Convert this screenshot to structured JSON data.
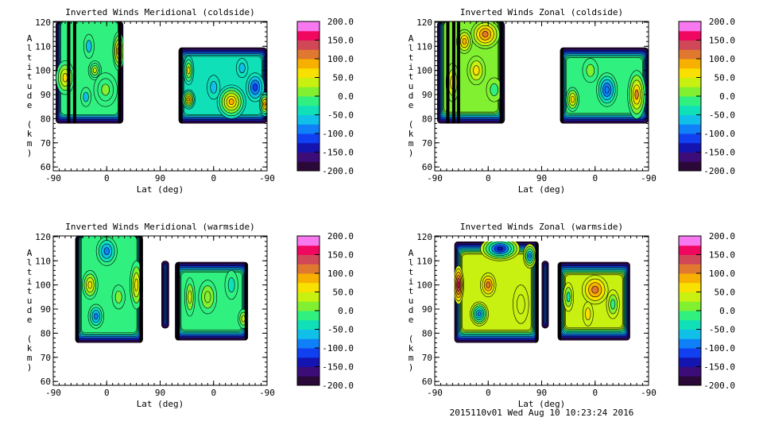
{
  "footer": "2015110v01 Wed Aug 10 10:23:24 2016",
  "chart_data": {
    "type": "contour",
    "shared": {
      "xlabel": "Lat (deg)",
      "ylabel": "Altitude (km)",
      "xticks": [
        0,
        90,
        180,
        270,
        360
      ],
      "xtick_labels": [
        "-90",
        "0",
        "90",
        "0",
        "-90"
      ],
      "xlim": [
        0,
        360
      ],
      "yticks": [
        60,
        70,
        80,
        90,
        100,
        110,
        120
      ],
      "ylim": [
        58.4,
        120.3
      ],
      "colorbar_ticks": [
        -200,
        -150,
        -100,
        -50,
        0,
        50,
        100,
        150,
        200
      ],
      "colorbar_labels": [
        "-200.0",
        "-150.0",
        "-100.0",
        "-50.0",
        "0.0",
        "50.0",
        "100.0",
        "150.0",
        "200.0"
      ],
      "levels_step": 25,
      "level_colors": [
        "#2a0838",
        "#3c0c78",
        "#1414b0",
        "#1040f0",
        "#1080f8",
        "#10c0e8",
        "#10e0b8",
        "#30f080",
        "#80f030",
        "#c8f010",
        "#f8e000",
        "#f8b000",
        "#e07830",
        "#d04858",
        "#f00860",
        "#f878f0"
      ]
    },
    "panels": [
      {
        "title": "Inverted Winds Meridional (coldside)",
        "regions": [
          {
            "u": [
              4,
              118
            ],
            "alt": [
              78,
              120.3
            ],
            "base": -25,
            "features": [
              [
                20,
                97,
                60,
                14,
                7
              ],
              [
                70,
                100,
                40,
                10,
                4
              ],
              [
                60,
                110,
                -60,
                8,
                5
              ],
              [
                55,
                89,
                -60,
                8,
                4
              ],
              [
                88,
                92,
                20,
                18,
                7
              ],
              [
                110,
                108,
                80,
                9,
                8
              ]
            ],
            "stripes": [
              26,
              36,
              112
            ]
          },
          {
            "u": [
              211,
              360
            ],
            "alt": [
              78,
              109.5
            ],
            "base": -30,
            "features": [
              [
                228,
                100,
                50,
                8,
                6
              ],
              [
                228,
                88,
                90,
                10,
                4
              ],
              [
                300,
                87,
                90,
                22,
                7
              ],
              [
                340,
                93,
                -110,
                14,
                6
              ],
              [
                318,
                101,
                -60,
                9,
                4
              ],
              [
                356,
                86,
                80,
                8,
                5
              ],
              [
                270,
                93,
                -60,
                10,
                5
              ]
            ],
            "stripes": [
              215
            ]
          }
        ]
      },
      {
        "title": "Inverted Winds Zonal (coldside)",
        "regions": [
          {
            "u": [
              4,
              118
            ],
            "alt": [
              78,
              120.3
            ],
            "base": 20,
            "features": [
              [
                30,
                95,
                60,
                10,
                8
              ],
              [
                70,
                100,
                60,
                14,
                6
              ],
              [
                85,
                115,
                110,
                22,
                6
              ],
              [
                100,
                92,
                -10,
                12,
                5
              ],
              [
                50,
                112,
                90,
                12,
                5
              ]
            ],
            "stripes": [
              22,
              32,
              40,
              112
            ]
          },
          {
            "u": [
              211,
              360
            ],
            "alt": [
              78,
              109.5
            ],
            "base": -10,
            "features": [
              [
                290,
                92,
                -100,
                16,
                7
              ],
              [
                340,
                90,
                100,
                14,
                10
              ],
              [
                232,
                88,
                60,
                10,
                5
              ],
              [
                262,
                100,
                20,
                12,
                5
              ]
            ],
            "stripes": [
              214
            ]
          }
        ]
      },
      {
        "title": "Inverted Winds Meridional (warmside)",
        "regions": [
          {
            "u": [
              37,
              151
            ],
            "alt": [
              76,
              120.3
            ],
            "base": -10,
            "features": [
              [
                62,
                100,
                70,
                12,
                6
              ],
              [
                90,
                114,
                -90,
                16,
                6
              ],
              [
                72,
                87,
                -80,
                12,
                5
              ],
              [
                140,
                100,
                60,
                10,
                10
              ],
              [
                110,
                95,
                10,
                10,
                5
              ]
            ],
            "stripes": [
              40,
              148
            ]
          },
          {
            "u": [
              182,
              195
            ],
            "alt": [
              82,
              110
            ],
            "base": -40,
            "features": [],
            "stripes": []
          },
          {
            "u": [
              205,
              328
            ],
            "alt": [
              77,
              109.5
            ],
            "base": -20,
            "features": [
              [
                260,
                95,
                20,
                14,
                7
              ],
              [
                300,
                100,
                -50,
                10,
                6
              ],
              [
                320,
                86,
                40,
                8,
                4
              ],
              [
                230,
                95,
                30,
                8,
                8
              ]
            ],
            "stripes": [
              210,
              325
            ]
          }
        ]
      },
      {
        "title": "Inverted Winds Zonal (warmside)",
        "regions": [
          {
            "u": [
              33,
              175
            ],
            "alt": [
              76,
              118
            ],
            "base": 30,
            "features": [
              [
                40,
                100,
                160,
                8,
                8
              ],
              [
                90,
                100,
                110,
                12,
                5
              ],
              [
                110,
                115,
                -130,
                30,
                5
              ],
              [
                75,
                88,
                -100,
                14,
                5
              ],
              [
                145,
                92,
                40,
                12,
                8
              ],
              [
                160,
                112,
                -80,
                10,
                5
              ]
            ],
            "stripes": [
              172
            ]
          },
          {
            "u": [
              180,
              192
            ],
            "alt": [
              82,
              110
            ],
            "base": 60,
            "features": [],
            "stripes": []
          },
          {
            "u": [
              207,
              329
            ],
            "alt": [
              77,
              109.5
            ],
            "base": 30,
            "features": [
              [
                270,
                98,
                100,
                20,
                6
              ],
              [
                258,
                88,
                50,
                8,
                5
              ],
              [
                300,
                92,
                -20,
                10,
                6
              ],
              [
                225,
                95,
                -30,
                8,
                6
              ]
            ],
            "stripes": [
              210
            ]
          }
        ]
      }
    ]
  }
}
